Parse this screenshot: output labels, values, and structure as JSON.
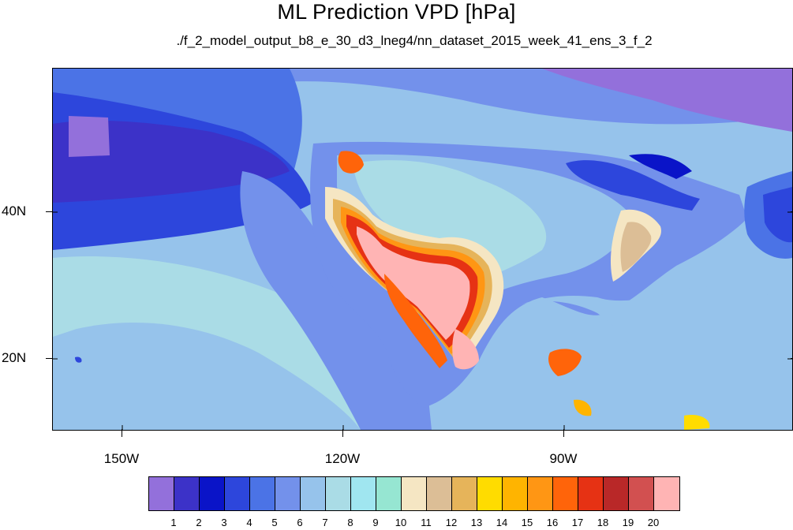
{
  "title": "ML Prediction VPD [hPa]",
  "subtitle": "./f_2_model_output_b8_e_30_d3_lneg4/nn_dataset_2015_week_41_ens_3_f_2",
  "map": {
    "type": "filled-contour-map",
    "region": "North America / Pacific",
    "lat_labels": [
      "40N",
      "20N"
    ],
    "lon_labels": [
      "150W",
      "120W",
      "90W"
    ]
  },
  "colorbar": {
    "labels": [
      "1",
      "2",
      "3",
      "4",
      "5",
      "6",
      "7",
      "8",
      "9",
      "10",
      "11",
      "12",
      "13",
      "14",
      "15",
      "16",
      "17",
      "18",
      "19",
      "20"
    ],
    "colors": [
      "#9370db",
      "#3c32c8",
      "#0a14c8",
      "#2d46dc",
      "#4b73e6",
      "#7391eb",
      "#96c3eb",
      "#aadce6",
      "#a0e6f0",
      "#96e6d2",
      "#f5e6c3",
      "#dcbe96",
      "#e6b45a",
      "#ffdc00",
      "#ffb400",
      "#ff9614",
      "#ff640a",
      "#e63214",
      "#b92828",
      "#d25050",
      "#ffb4b4"
    ]
  },
  "palette": {
    "deep_ocean": "#2d46dc",
    "mid_ocean": "#7391eb",
    "warm_ocean": "#96c3eb",
    "tropical": "#aadce6",
    "arctic": "#4b73e6",
    "dry_hot": "#ffb4b4"
  }
}
